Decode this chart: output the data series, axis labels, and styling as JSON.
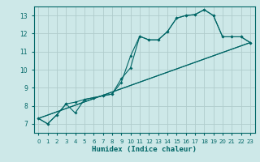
{
  "xlabel": "Humidex (Indice chaleur)",
  "xlim": [
    -0.5,
    23.5
  ],
  "ylim": [
    6.5,
    13.5
  ],
  "xticks": [
    0,
    1,
    2,
    3,
    4,
    5,
    6,
    7,
    8,
    9,
    10,
    11,
    12,
    13,
    14,
    15,
    16,
    17,
    18,
    19,
    20,
    21,
    22,
    23
  ],
  "yticks": [
    7,
    8,
    9,
    10,
    11,
    12,
    13
  ],
  "bg_color": "#cde8e8",
  "grid_color": "#b0cccc",
  "line_color": "#006666",
  "curve1_x": [
    0,
    1,
    2,
    3,
    4,
    5,
    6,
    7,
    8,
    9,
    10,
    11,
    12,
    13,
    14,
    15,
    16,
    17,
    18,
    19,
    20,
    21,
    22,
    23
  ],
  "curve1_y": [
    7.3,
    7.0,
    7.5,
    8.1,
    8.2,
    8.35,
    8.45,
    8.55,
    8.65,
    9.5,
    10.1,
    11.85,
    11.65,
    11.65,
    12.1,
    12.85,
    13.0,
    13.05,
    13.32,
    13.0,
    11.82,
    11.82,
    11.82,
    11.5
  ],
  "curve2_x": [
    0,
    1,
    2,
    3,
    4,
    5,
    6,
    7,
    8,
    9,
    10,
    11,
    12,
    13,
    14,
    15,
    16,
    17,
    18,
    19,
    20,
    21,
    22,
    23
  ],
  "curve2_y": [
    7.3,
    7.0,
    7.5,
    8.1,
    7.6,
    8.35,
    8.45,
    8.55,
    8.65,
    9.3,
    10.75,
    11.85,
    11.65,
    11.65,
    12.1,
    12.85,
    13.0,
    13.05,
    13.32,
    13.0,
    11.82,
    11.82,
    11.82,
    11.5
  ],
  "line3_x": [
    0,
    23
  ],
  "line3_y": [
    7.3,
    11.5
  ],
  "line4_x": [
    0,
    23
  ],
  "line4_y": [
    7.3,
    11.5
  ]
}
